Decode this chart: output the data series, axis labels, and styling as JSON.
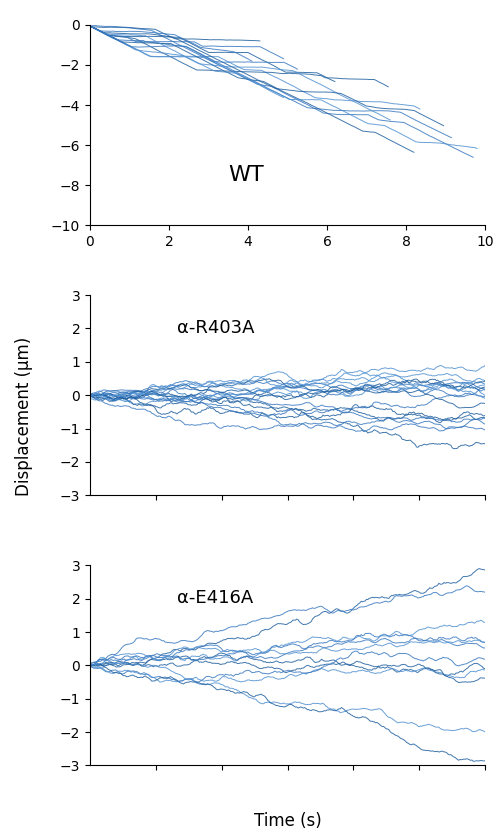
{
  "wt_label": "WT",
  "r403a_label": "α-R403A",
  "e416a_label": "α-E416A",
  "ylabel": "Displacement (μm)",
  "xlabel": "Time (s)",
  "wt_xlim": [
    0,
    10
  ],
  "wt_ylim": [
    -10,
    0
  ],
  "wt_xticks": [
    0,
    2,
    4,
    6,
    8,
    10
  ],
  "wt_yticks": [
    0,
    -2,
    -4,
    -6,
    -8,
    -10
  ],
  "mutant_xlim": [
    0,
    60
  ],
  "mutant_ylim": [
    -3,
    3
  ],
  "mutant_xticks": [
    10,
    20,
    30,
    40,
    50,
    60
  ],
  "mutant_yticks": [
    -3,
    -2,
    -1,
    0,
    1,
    2,
    3
  ],
  "line_color_dark": "#2060a0",
  "line_color_mid": "#3878c0",
  "line_color_light": "#5090d0",
  "background": "#ffffff",
  "wt_n_tracks": 14,
  "r403a_n_tracks": 18,
  "e416a_n_tracks": 12,
  "seed_wt": 42,
  "seed_r403a": 7,
  "seed_e416a": 13
}
